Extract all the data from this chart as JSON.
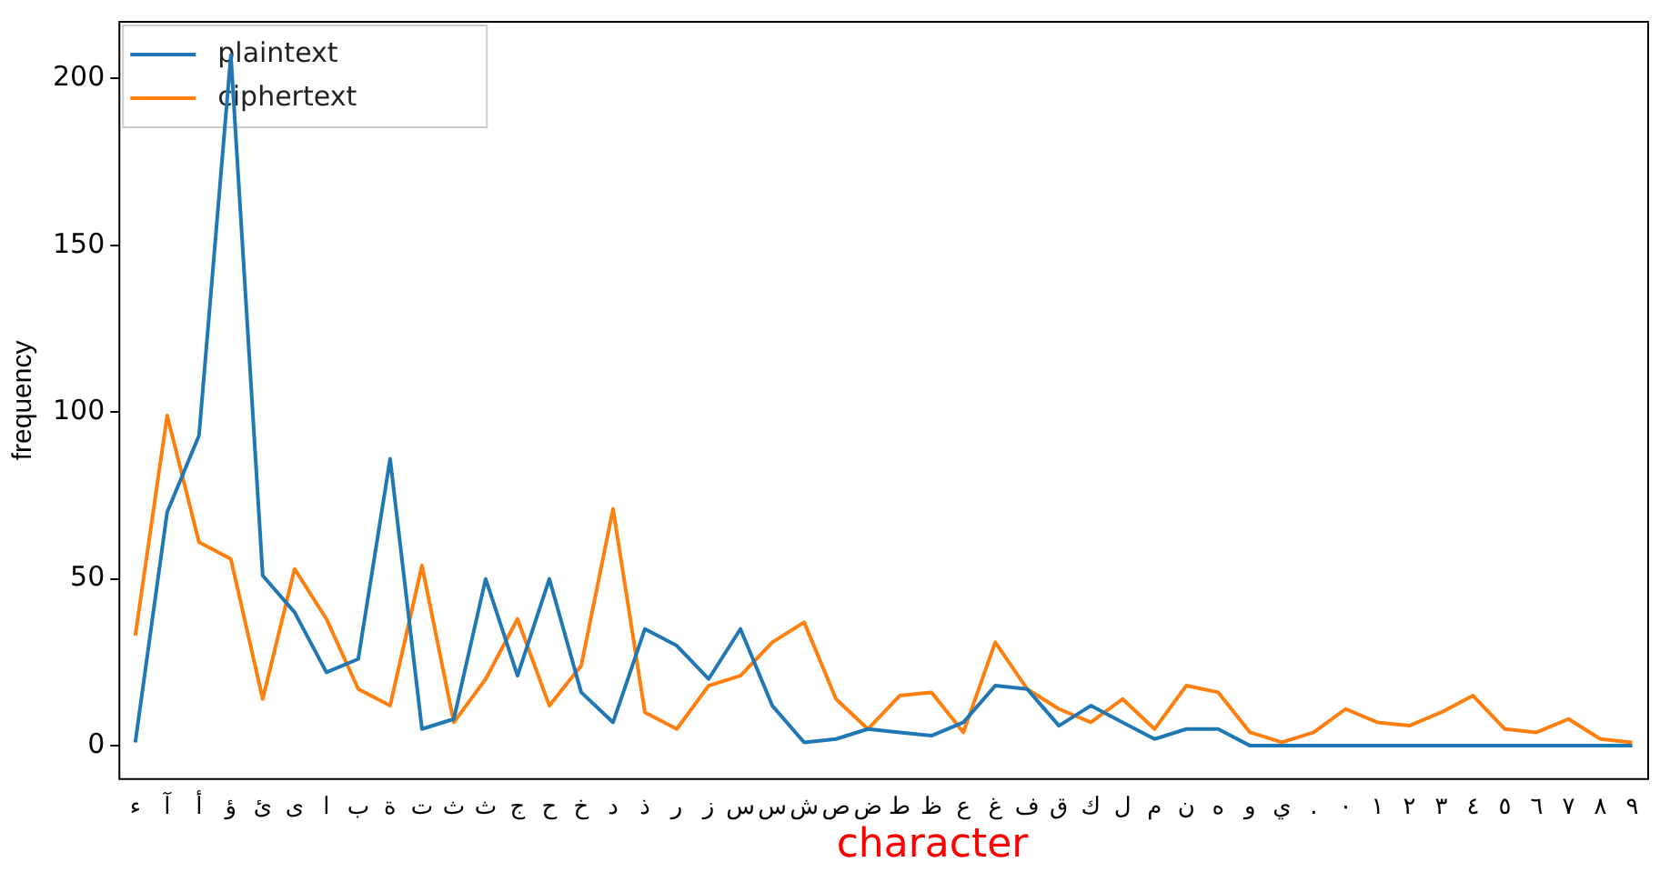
{
  "chart_data": {
    "type": "line",
    "xlabel": "character",
    "ylabel": "frequency",
    "categories": [
      "ء",
      "آ",
      "أ",
      "ؤ",
      "ئ",
      "ى",
      "ا",
      "ب",
      "ة",
      "ت",
      "ث",
      "ث",
      "ج",
      "ح",
      "خ",
      "د",
      "ذ",
      "ر",
      "ز",
      "س",
      "س",
      "ش",
      "ص",
      "ض",
      "ط",
      "ظ",
      "ع",
      "غ",
      "ف",
      "ق",
      "ك",
      "ل",
      "م",
      "ن",
      "ه",
      "و",
      "ي",
      ".",
      "٠",
      "١",
      "٢",
      "٣",
      "٤",
      "٥",
      "٦",
      "٧",
      "٨",
      "٩"
    ],
    "series": [
      {
        "name": "plaintext",
        "color": "#1f77b4",
        "values": [
          1,
          70,
          93,
          207,
          51,
          40,
          22,
          26,
          86,
          5,
          8,
          50,
          21,
          50,
          16,
          7,
          35,
          30,
          20,
          35,
          12,
          1,
          2,
          5,
          4,
          3,
          7,
          18,
          17,
          6,
          12,
          7,
          2,
          5,
          5,
          0,
          0,
          0,
          0,
          0,
          0,
          0,
          0,
          0,
          0,
          0,
          0,
          0
        ]
      },
      {
        "name": "ciphertext",
        "color": "#ff7f0e",
        "values": [
          33,
          99,
          61,
          56,
          14,
          53,
          38,
          17,
          12,
          54,
          7,
          20,
          38,
          12,
          24,
          71,
          10,
          5,
          18,
          21,
          31,
          37,
          14,
          5,
          15,
          16,
          4,
          31,
          17,
          11,
          7,
          14,
          5,
          18,
          16,
          4,
          1,
          4,
          11,
          7,
          6,
          10,
          15,
          5,
          4,
          8,
          2,
          1
        ]
      }
    ],
    "ylim": [
      -10,
      217
    ],
    "yticks": [
      0,
      50,
      100,
      150,
      200
    ],
    "grid": false,
    "legend": "top left",
    "marker": "none",
    "line_style": "solid"
  }
}
